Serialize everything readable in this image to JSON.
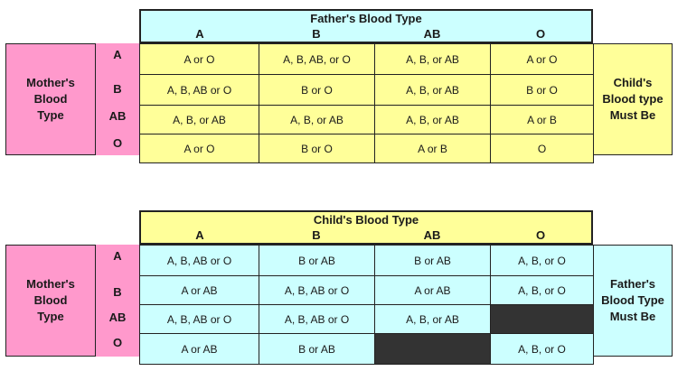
{
  "table1": {
    "header_title": "Father's Blood Type",
    "columns": [
      "A",
      "B",
      "AB",
      "O"
    ],
    "mother_label": [
      "Mother's",
      "Blood",
      "Type"
    ],
    "row_labels": [
      "A",
      "B",
      "AB",
      "O"
    ],
    "cells": [
      [
        "A or O",
        "A, B, AB, or O",
        "A, B, or AB",
        "A or O"
      ],
      [
        "A, B, AB or O",
        "B or O",
        "A, B, or AB",
        "B or O"
      ],
      [
        "A, B, or AB",
        "A, B, or AB",
        "A, B, or AB",
        "A or B"
      ],
      [
        "A or O",
        "B or O",
        "A or B",
        "O"
      ]
    ],
    "right_label": [
      "Child's",
      "Blood type",
      "Must Be"
    ],
    "colors": {
      "header": "#ccffff",
      "cells": "#ffff99",
      "mother": "#ff99cc"
    }
  },
  "table2": {
    "header_title": "Child's Blood Type",
    "columns": [
      "A",
      "B",
      "AB",
      "O"
    ],
    "mother_label": [
      "Mother's",
      "Blood",
      "Type"
    ],
    "row_labels": [
      "A",
      "B",
      "AB",
      "O"
    ],
    "cells": [
      [
        "A, B, AB or O",
        "B or AB",
        "B or AB",
        "A, B, or O"
      ],
      [
        "A or AB",
        "A, B, AB or O",
        "A or AB",
        "A, B, or O"
      ],
      [
        "A, B, AB or O",
        "A, B, AB or O",
        "A, B, or AB",
        ""
      ],
      [
        "A or AB",
        "B or AB",
        "",
        "A, B, or O"
      ]
    ],
    "blocked_cells": [
      [
        2,
        3
      ],
      [
        3,
        2
      ]
    ],
    "right_label": [
      "Father's",
      "Blood Type",
      "Must Be"
    ],
    "colors": {
      "header": "#ffff99",
      "cells": "#ccffff",
      "mother": "#ff99cc",
      "blocked": "#333333"
    }
  }
}
